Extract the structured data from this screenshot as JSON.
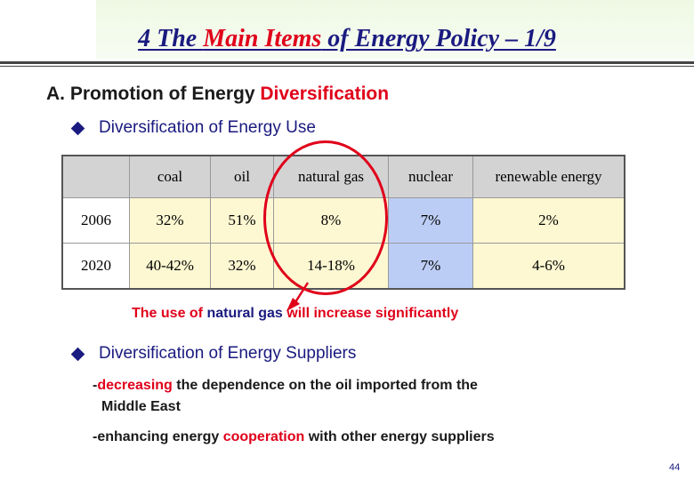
{
  "slide": {
    "title_prefix": "4 The ",
    "title_highlight": "Main Items",
    "title_suffix": " of Energy Policy – 1/9",
    "section_prefix": "A. Promotion of Energy ",
    "section_highlight": "Diversification",
    "bullet1": "Diversification of Energy Use",
    "table": {
      "headers": [
        "",
        "coal",
        "oil",
        "natural gas",
        "nuclear",
        "renewable energy"
      ],
      "rows": [
        [
          "2006",
          "32%",
          "51%",
          "8%",
          "7%",
          "2%"
        ],
        [
          "2020",
          "40-42%",
          "32%",
          "14-18%",
          "7%",
          "4-6%"
        ]
      ]
    },
    "note_prefix": "The use of ",
    "note_highlight": "natural gas",
    "note_suffix": " will increase significantly",
    "bullet2": "Diversification of Energy Suppliers",
    "line1_prefix": "-",
    "line1_highlight": "decreasing",
    "line1_suffix": " the dependence on the oil imported from the",
    "line2": "Middle East",
    "line3_prefix": "-enhancing energy ",
    "line3_highlight": "cooperation",
    "line3_suffix": " with other energy suppliers",
    "page_number": "44"
  },
  "colors": {
    "title": "#1a1a80",
    "highlight": "#e0001a",
    "header_cell": "#d3d3d3",
    "body_cell": "#fdf8d2",
    "nuclear_cell": "#bccdf5"
  }
}
